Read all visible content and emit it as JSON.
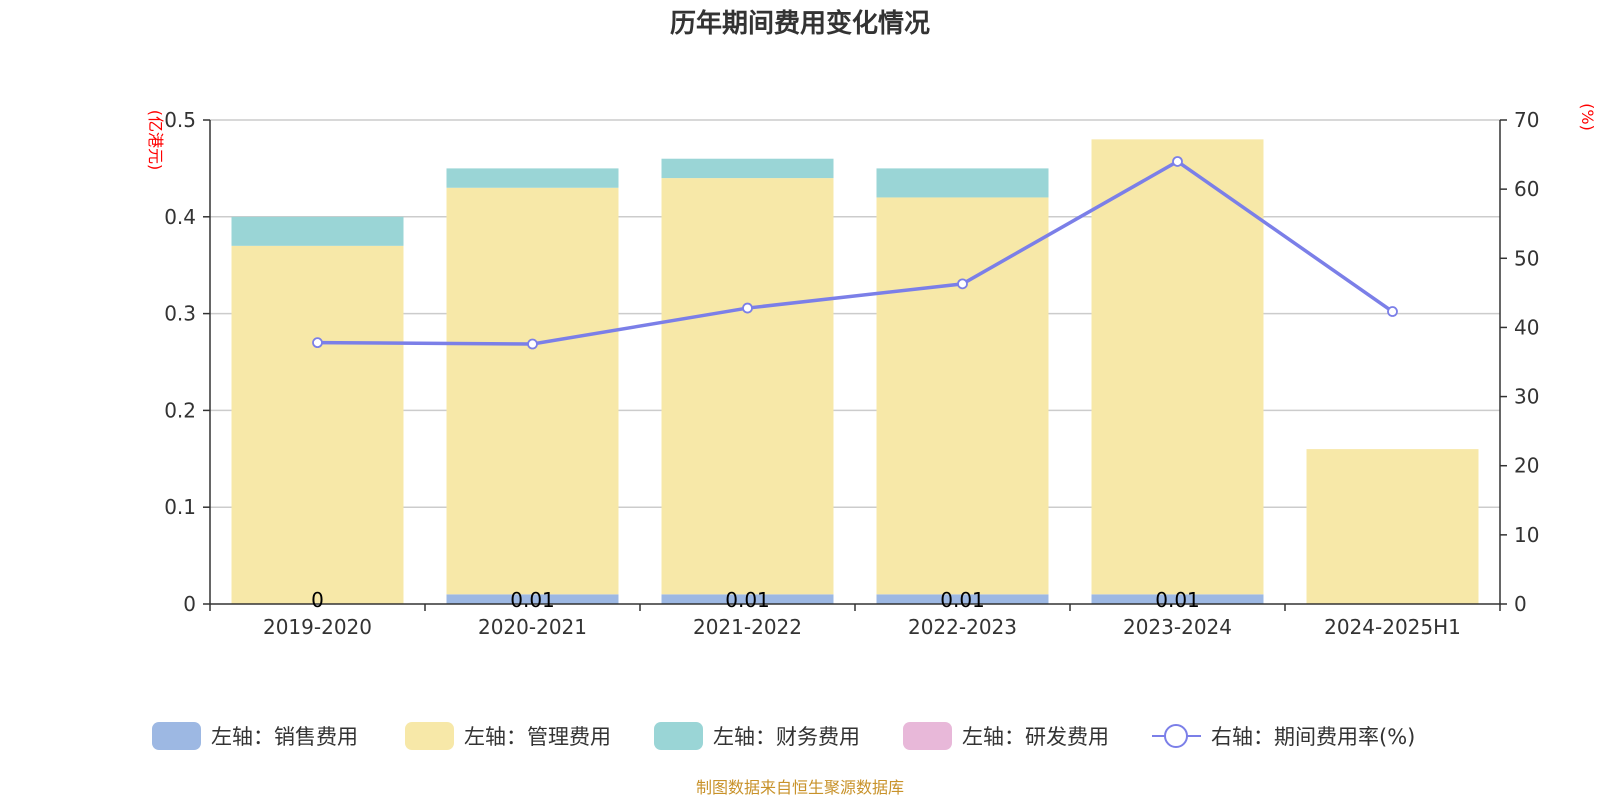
{
  "chart_data": {
    "type": "bar",
    "stacked": true,
    "title": "历年期间费用变化情况",
    "categories": [
      "2019-2020",
      "2020-2021",
      "2021-2022",
      "2022-2023",
      "2023-2024",
      "2024-2025H1"
    ],
    "y_left": {
      "unit_label": "(亿港元)",
      "ylim": [
        0,
        0.5
      ],
      "ticks": [
        "0",
        "0.1",
        "0.2",
        "0.3",
        "0.4",
        "0.5"
      ]
    },
    "y_right": {
      "unit_label": "(%)",
      "ylim": [
        0,
        70
      ],
      "ticks": [
        "0",
        "10",
        "20",
        "30",
        "40",
        "50",
        "60",
        "70"
      ]
    },
    "grid": true,
    "legend_position": "bottom",
    "series": [
      {
        "name": "左轴：销售费用",
        "type": "bar",
        "axis": "left",
        "color": "#9db8e3",
        "values": [
          0,
          0.01,
          0.01,
          0.01,
          0.01,
          0
        ],
        "labels": [
          "0",
          "0.01",
          "0.01",
          "0.01",
          "0.01",
          ""
        ]
      },
      {
        "name": "左轴：管理费用",
        "type": "bar",
        "axis": "left",
        "color": "#f7e8a8",
        "values": [
          0.37,
          0.42,
          0.43,
          0.41,
          0.47,
          0.16
        ]
      },
      {
        "name": "左轴：财务费用",
        "type": "bar",
        "axis": "left",
        "color": "#9ad5d6",
        "values": [
          0.03,
          0.02,
          0.02,
          0.03,
          0,
          0
        ]
      },
      {
        "name": "左轴：研发费用",
        "type": "bar",
        "axis": "left",
        "color": "#e8b8d9",
        "values": [
          0,
          0,
          0,
          0,
          0,
          0
        ]
      },
      {
        "name": "右轴：期间费用率(%)",
        "type": "line",
        "axis": "right",
        "color": "#7b7fe8",
        "values": [
          37.8,
          37.6,
          42.8,
          46.3,
          64.0,
          42.3
        ]
      }
    ],
    "source": "制图数据来自恒生聚源数据库"
  }
}
